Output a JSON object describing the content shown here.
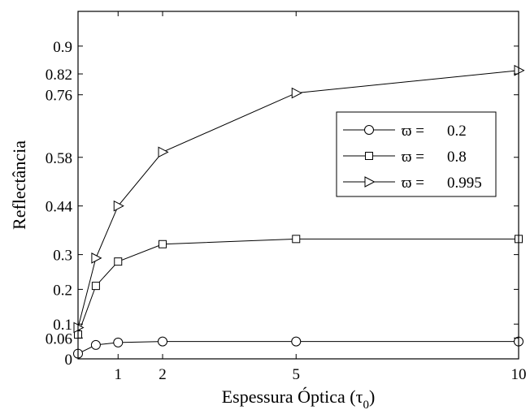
{
  "chart_data": {
    "type": "line",
    "xlabel": "Espessura Óptica (τ",
    "xlabel_sub": "0",
    "xlabel_close": ")",
    "ylabel": "Reflectância",
    "xlim": [
      0.1,
      10
    ],
    "ylim": [
      0,
      1
    ],
    "x_ticks": [
      1,
      2,
      5,
      10
    ],
    "x_tick_labels": [
      "1",
      "2",
      "5",
      "10"
    ],
    "y_ticks": [
      0,
      0.06,
      0.1,
      0.2,
      0.3,
      0.44,
      0.58,
      0.76,
      0.82,
      0.9
    ],
    "y_tick_labels": [
      "0",
      "0.06",
      "0.1",
      "0.2",
      "0.3",
      "0.44",
      "0.58",
      "0.76",
      "0.82",
      "0.9"
    ],
    "grid": false,
    "legend_position": "right",
    "series": [
      {
        "name": "ϖ = 0.2",
        "legend_symbol": "ϖ =",
        "legend_value": "0.2",
        "marker": "circle",
        "x": [
          0.1,
          0.5,
          1,
          2,
          5,
          10
        ],
        "y": [
          0.015,
          0.04,
          0.047,
          0.05,
          0.05,
          0.05
        ]
      },
      {
        "name": "ϖ = 0.8",
        "legend_symbol": "ϖ =",
        "legend_value": "0.8",
        "marker": "square",
        "x": [
          0.1,
          0.5,
          1,
          2,
          5,
          10
        ],
        "y": [
          0.07,
          0.21,
          0.28,
          0.33,
          0.345,
          0.345
        ]
      },
      {
        "name": "ϖ = 0.995",
        "legend_symbol": "ϖ =",
        "legend_value": "0.995",
        "marker": "triangle-right",
        "x": [
          0.1,
          0.5,
          1,
          2,
          5,
          10
        ],
        "y": [
          0.09,
          0.29,
          0.44,
          0.595,
          0.765,
          0.83
        ]
      }
    ]
  }
}
